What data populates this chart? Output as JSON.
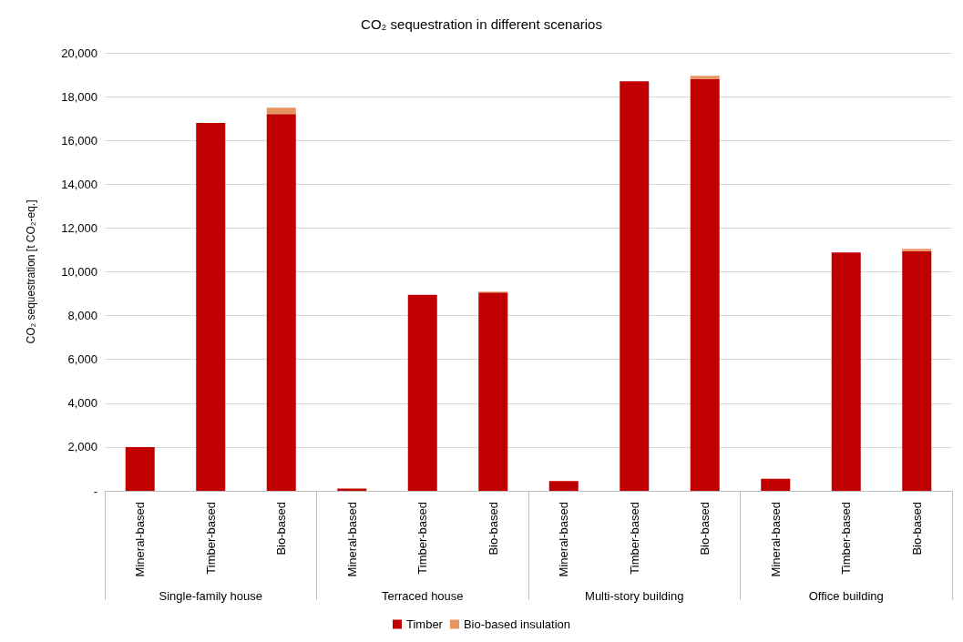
{
  "chart_data": {
    "type": "bar",
    "title": "CO₂ sequestration in different scenarios",
    "ylabel": "CO₂ sequestration [t CO₂-eq.]",
    "categories": [
      "Mineral-based",
      "Timber-based",
      "Bio-based",
      "Mineral-based",
      "Timber-based",
      "Bio-based",
      "Mineral-based",
      "Timber-based",
      "Bio-based",
      "Mineral-based",
      "Timber-based",
      "Bio-based"
    ],
    "annotations": [
      "Single-family house",
      "Terraced house",
      "Multi-story building",
      "Office building"
    ],
    "stacked": true,
    "series": [
      {
        "name": "Timber",
        "color": "#c00000",
        "values": [
          2000,
          16800,
          17200,
          100,
          8950,
          9050,
          450,
          18700,
          18800,
          550,
          10880,
          10950
        ]
      },
      {
        "name": "Bio-based insulation",
        "color": "#e6955f",
        "values": [
          0,
          0,
          300,
          0,
          0,
          50,
          0,
          0,
          150,
          0,
          0,
          100
        ]
      }
    ],
    "ylim": [
      0,
      20000
    ],
    "yticks": [
      {
        "value": 0,
        "label": "-"
      },
      {
        "value": 2000,
        "label": "2,000"
      },
      {
        "value": 4000,
        "label": "4,000"
      },
      {
        "value": 6000,
        "label": "6,000"
      },
      {
        "value": 8000,
        "label": "8,000"
      },
      {
        "value": 10000,
        "label": "10,000"
      },
      {
        "value": 12000,
        "label": "12,000"
      },
      {
        "value": 14000,
        "label": "14,000"
      },
      {
        "value": 16000,
        "label": "16,000"
      },
      {
        "value": 18000,
        "label": "18,000"
      },
      {
        "value": 20000,
        "label": "20,000"
      }
    ],
    "grid": "y",
    "legend": "bottom"
  }
}
